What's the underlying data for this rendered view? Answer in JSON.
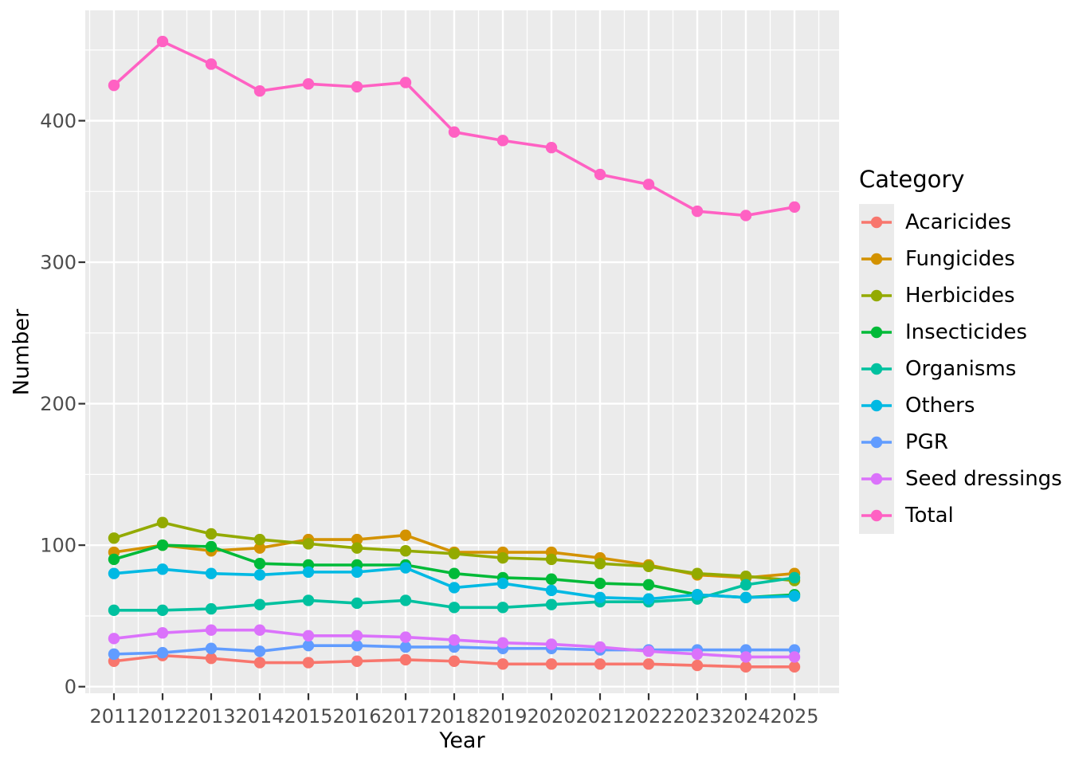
{
  "figure": {
    "background": "#FFFFFF",
    "panel_background": "#EBEBEB",
    "gridline_color": "#FFFFFF",
    "tick_color": "#333333",
    "tick_label_color": "#4D4D4D"
  },
  "chart_data": {
    "type": "line",
    "title": "",
    "xlabel": "Year",
    "ylabel": "Number",
    "legend_title": "Category",
    "legend_position": "right",
    "grid": true,
    "x": [
      2011,
      2012,
      2013,
      2014,
      2015,
      2016,
      2017,
      2018,
      2019,
      2020,
      2021,
      2022,
      2023,
      2024,
      2025
    ],
    "y_ticks": [
      0,
      100,
      200,
      300,
      400
    ],
    "xlim": [
      2011,
      2025
    ],
    "ylim": [
      0,
      477
    ],
    "series": [
      {
        "name": "Acaricides",
        "color": "#F8766D",
        "values": [
          18,
          22,
          20,
          17,
          17,
          18,
          19,
          18,
          16,
          16,
          16,
          16,
          15,
          14,
          14
        ]
      },
      {
        "name": "Fungicides",
        "color": "#D39200",
        "values": [
          95,
          100,
          96,
          98,
          104,
          104,
          107,
          95,
          95,
          95,
          91,
          86,
          79,
          77,
          80
        ]
      },
      {
        "name": "Herbicides",
        "color": "#93AA00",
        "values": [
          105,
          116,
          108,
          104,
          101,
          98,
          96,
          94,
          91,
          90,
          87,
          85,
          80,
          78,
          75
        ]
      },
      {
        "name": "Insecticides",
        "color": "#00BA38",
        "values": [
          90,
          100,
          99,
          87,
          86,
          86,
          86,
          80,
          77,
          76,
          73,
          72,
          65,
          63,
          65
        ]
      },
      {
        "name": "Organisms",
        "color": "#00C19F",
        "values": [
          54,
          54,
          55,
          58,
          61,
          59,
          61,
          56,
          56,
          58,
          60,
          60,
          62,
          72,
          77
        ]
      },
      {
        "name": "Others",
        "color": "#00B9E3",
        "values": [
          80,
          83,
          80,
          79,
          81,
          81,
          84,
          70,
          73,
          68,
          63,
          62,
          65,
          63,
          64
        ]
      },
      {
        "name": "PGR",
        "color": "#619CFF",
        "values": [
          23,
          24,
          27,
          25,
          29,
          29,
          28,
          28,
          27,
          27,
          26,
          26,
          26,
          26,
          26
        ]
      },
      {
        "name": "Seed dressings",
        "color": "#DB72FB",
        "values": [
          34,
          38,
          40,
          40,
          36,
          36,
          35,
          33,
          31,
          30,
          28,
          25,
          23,
          21,
          21
        ]
      },
      {
        "name": "Total",
        "color": "#FF61C3",
        "values": [
          425,
          456,
          440,
          421,
          426,
          424,
          427,
          392,
          386,
          381,
          362,
          355,
          336,
          333,
          339
        ]
      }
    ]
  }
}
